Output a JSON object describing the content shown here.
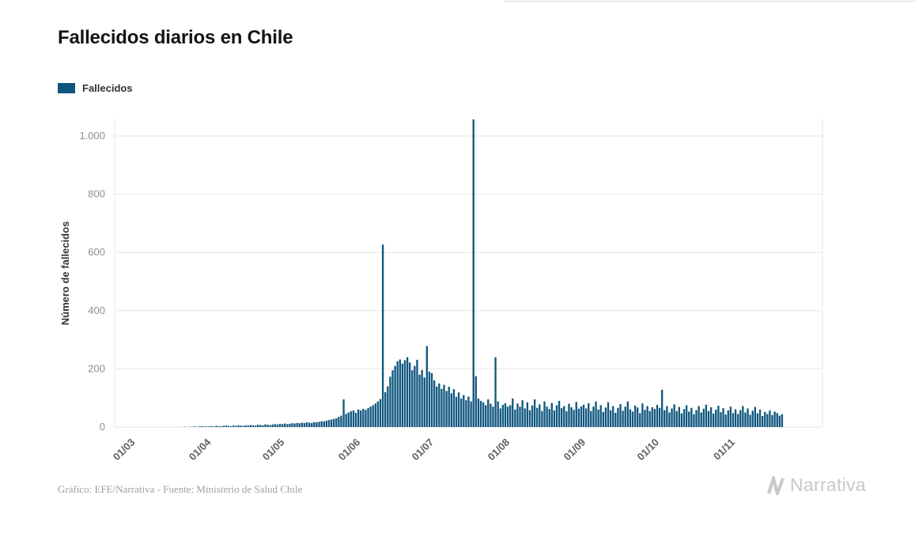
{
  "title": "Fallecidos diarios en Chile",
  "legend": {
    "label": "Fallecidos"
  },
  "footer": {
    "credit": "Gráfico: EFE/Narrativa - Fuente: Ministerio de Salud Chile"
  },
  "logo": {
    "text": "Narrativa"
  },
  "colors": {
    "bar": "#0f567e",
    "grid": "#e6e6e6",
    "y_tick_text": "#8f8f8f",
    "x_tick_text": "#606060",
    "title_text": "#141414",
    "footer_text": "#a0a0a0",
    "logo": "#c8c8c8"
  },
  "chart_data": {
    "type": "bar",
    "title": "Fallecidos diarios en Chile",
    "series_name": "Fallecidos",
    "xlabel": "",
    "ylabel": "Número de fallecidos",
    "ylim": [
      0,
      1100
    ],
    "grid": "horizontal-only",
    "legend_position": "top-left",
    "y_ticks": [
      "0",
      "200",
      "400",
      "600",
      "800",
      "1.000"
    ],
    "y_tick_values": [
      0,
      200,
      400,
      600,
      800,
      1000
    ],
    "x_tick_labels": [
      "01/03",
      "01/04",
      "01/05",
      "01/06",
      "01/07",
      "01/08",
      "01/09",
      "01/10",
      "01/11"
    ],
    "x_tick_day_index": [
      0,
      31,
      61,
      92,
      122,
      153,
      184,
      214,
      245
    ],
    "start_date": "01/03/2020",
    "notable_points": [
      {
        "approx_date": "10/06",
        "value": 627
      },
      {
        "approx_date": "17/07",
        "value": 1057
      }
    ],
    "values": [
      0,
      0,
      0,
      0,
      0,
      0,
      0,
      0,
      0,
      0,
      0,
      0,
      0,
      0,
      0,
      0,
      0,
      0,
      0,
      0,
      1,
      0,
      1,
      1,
      2,
      1,
      2,
      3,
      2,
      2,
      2,
      3,
      2,
      4,
      3,
      3,
      4,
      5,
      4,
      3,
      5,
      4,
      6,
      5,
      4,
      6,
      5,
      7,
      6,
      5,
      8,
      7,
      6,
      9,
      8,
      7,
      9,
      10,
      9,
      11,
      10,
      12,
      10,
      11,
      13,
      12,
      14,
      13,
      15,
      14,
      16,
      15,
      14,
      17,
      16,
      18,
      20,
      19,
      22,
      24,
      26,
      28,
      30,
      35,
      39,
      95,
      45,
      50,
      54,
      57,
      49,
      60,
      57,
      62,
      59,
      65,
      70,
      75,
      81,
      88,
      96,
      627,
      120,
      140,
      173,
      195,
      210,
      226,
      232,
      218,
      230,
      240,
      222,
      195,
      210,
      231,
      180,
      196,
      170,
      278,
      190,
      185,
      160,
      139,
      150,
      131,
      145,
      124,
      138,
      116,
      130,
      104,
      119,
      98,
      110,
      92,
      105,
      88,
      1057,
      175,
      98,
      90,
      85,
      75,
      95,
      80,
      70,
      240,
      88,
      64,
      76,
      82,
      70,
      75,
      98,
      60,
      81,
      70,
      92,
      64,
      85,
      58,
      74,
      95,
      66,
      78,
      55,
      88,
      70,
      62,
      83,
      57,
      75,
      90,
      65,
      72,
      54,
      80,
      68,
      59,
      86,
      63,
      71,
      77,
      64,
      82,
      55,
      70,
      88,
      60,
      75,
      52,
      67,
      85,
      58,
      72,
      49,
      66,
      79,
      56,
      70,
      88,
      61,
      53,
      74,
      67,
      48,
      81,
      59,
      72,
      55,
      68,
      62,
      76,
      66,
      128,
      58,
      72,
      50,
      64,
      78,
      55,
      69,
      47,
      62,
      75,
      53,
      66,
      44,
      58,
      72,
      50,
      63,
      77,
      55,
      68,
      46,
      60,
      73,
      51,
      65,
      43,
      57,
      70,
      48,
      61,
      45,
      58,
      72,
      50,
      64,
      42,
      56,
      69,
      47,
      60,
      38,
      52,
      45,
      57,
      41,
      53,
      48,
      39,
      44
    ]
  }
}
